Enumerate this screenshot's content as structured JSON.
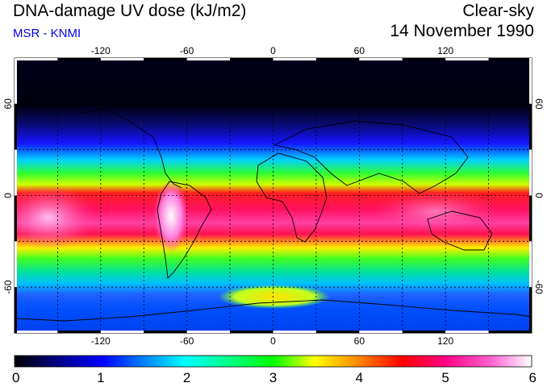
{
  "header": {
    "title": "DNA-damage UV dose (kJ/m2)",
    "source": "MSR - KNMI",
    "condition": "Clear-sky",
    "date": "14 November 1990"
  },
  "colors": {
    "source_text": "#0000ee",
    "frame": "#000000",
    "grid": "#000000"
  },
  "map": {
    "lon_ticks": [
      -120,
      -60,
      0,
      60,
      120
    ],
    "lat_ticks": [
      60,
      0,
      -60
    ],
    "grid_lons": [
      -150,
      -120,
      -90,
      -60,
      -30,
      0,
      30,
      60,
      90,
      120,
      150
    ],
    "grid_lats": [
      60,
      30,
      0,
      -30,
      -60
    ],
    "lon_labels": [
      "-120",
      "-60",
      "0",
      "60",
      "120"
    ],
    "lat_labels": [
      "60",
      "0",
      "-60"
    ],
    "lon_range": [
      -180,
      180
    ],
    "lat_range": [
      -90,
      90
    ]
  },
  "colorbar": {
    "ticks": [
      "0",
      "1",
      "2",
      "3",
      "4",
      "5",
      "6"
    ],
    "range": [
      0,
      6
    ]
  }
}
